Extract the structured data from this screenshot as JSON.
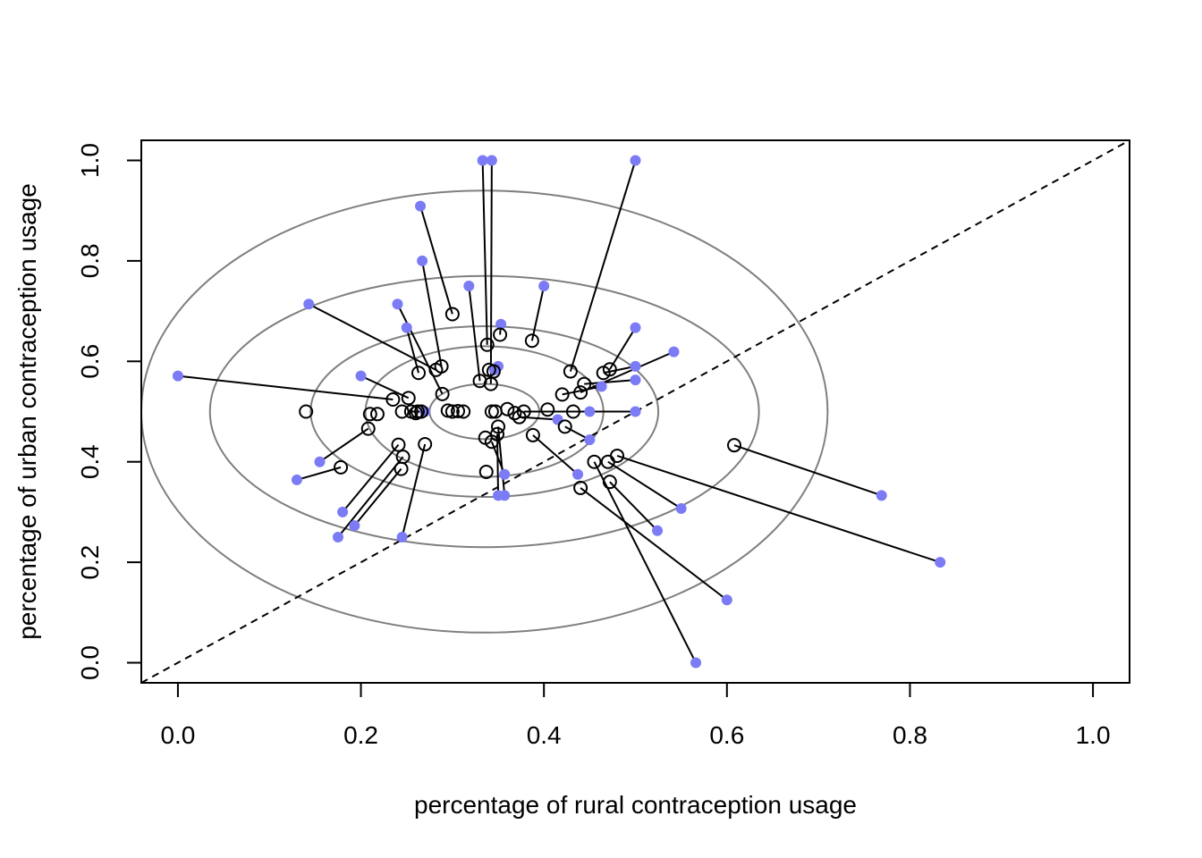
{
  "chart_data": {
    "type": "scatter",
    "title": "",
    "xlabel": "percentage of rural contraception usage",
    "ylabel": "percentage of  urban contraception usage",
    "xlim": [
      -0.04,
      1.04
    ],
    "ylim": [
      -0.04,
      1.04
    ],
    "xticks": [
      "0.0",
      "0.2",
      "0.4",
      "0.6",
      "0.8",
      "1.0"
    ],
    "yticks": [
      "0.0",
      "0.2",
      "0.4",
      "0.6",
      "0.8",
      "1.0"
    ],
    "grid": false,
    "legend": "none",
    "colors": {
      "observed": "#7b7bf5",
      "shrunk": "#000000",
      "contour": "#7f7f7f"
    },
    "reference_line": {
      "kind": "identity y = x",
      "style": "dashed"
    },
    "contours": {
      "center": [
        0.335,
        0.5
      ],
      "semi_axes": [
        [
          0.06,
          0.055
        ],
        [
          0.13,
          0.13
        ],
        [
          0.19,
          0.17
        ],
        [
          0.3,
          0.27
        ],
        [
          0.375,
          0.44
        ]
      ]
    },
    "series": [
      {
        "marker": "filled-circle",
        "values": [
          [
            0.0,
            0.571
          ],
          [
            0.143,
            0.714
          ],
          [
            0.25,
            0.667
          ],
          [
            0.24,
            0.714
          ],
          [
            0.265,
            0.909
          ],
          [
            0.267,
            0.8
          ],
          [
            0.333,
            1.0
          ],
          [
            0.343,
            1.0
          ],
          [
            0.5,
            1.0
          ],
          [
            0.4,
            0.75
          ],
          [
            0.318,
            0.75
          ],
          [
            0.353,
            0.674
          ],
          [
            0.5,
            0.667
          ],
          [
            0.5,
            0.59
          ],
          [
            0.5,
            0.563
          ],
          [
            0.542,
            0.619
          ],
          [
            0.463,
            0.55
          ],
          [
            0.5,
            0.5
          ],
          [
            0.45,
            0.5
          ],
          [
            0.27,
            0.5
          ],
          [
            0.35,
            0.59
          ],
          [
            0.346,
            0.583
          ],
          [
            0.2,
            0.571
          ],
          [
            0.155,
            0.4
          ],
          [
            0.13,
            0.364
          ],
          [
            0.18,
            0.3
          ],
          [
            0.175,
            0.25
          ],
          [
            0.193,
            0.273
          ],
          [
            0.245,
            0.25
          ],
          [
            0.35,
            0.333
          ],
          [
            0.357,
            0.333
          ],
          [
            0.357,
            0.375
          ],
          [
            0.437,
            0.375
          ],
          [
            0.45,
            0.444
          ],
          [
            0.415,
            0.484
          ],
          [
            0.524,
            0.263
          ],
          [
            0.55,
            0.307
          ],
          [
            0.6,
            0.125
          ],
          [
            0.566,
            0.0
          ],
          [
            0.769,
            0.333
          ],
          [
            0.833,
            0.2
          ]
        ]
      },
      {
        "marker": "open-circle",
        "values": [
          [
            0.235,
            0.524
          ],
          [
            0.282,
            0.583
          ],
          [
            0.263,
            0.577
          ],
          [
            0.252,
            0.527
          ],
          [
            0.288,
            0.59
          ],
          [
            0.3,
            0.694
          ],
          [
            0.289,
            0.535
          ],
          [
            0.33,
            0.561
          ],
          [
            0.338,
            0.633
          ],
          [
            0.34,
            0.583
          ],
          [
            0.429,
            0.58
          ],
          [
            0.387,
            0.641
          ],
          [
            0.352,
            0.653
          ],
          [
            0.342,
            0.555
          ],
          [
            0.472,
            0.584
          ],
          [
            0.465,
            0.577
          ],
          [
            0.444,
            0.555
          ],
          [
            0.42,
            0.534
          ],
          [
            0.44,
            0.538
          ],
          [
            0.432,
            0.5
          ],
          [
            0.404,
            0.504
          ],
          [
            0.343,
            0.5
          ],
          [
            0.345,
            0.58
          ],
          [
            0.255,
            0.5
          ],
          [
            0.21,
            0.495
          ],
          [
            0.208,
            0.466
          ],
          [
            0.178,
            0.389
          ],
          [
            0.241,
            0.434
          ],
          [
            0.246,
            0.41
          ],
          [
            0.27,
            0.435
          ],
          [
            0.244,
            0.386
          ],
          [
            0.14,
            0.5
          ],
          [
            0.218,
            0.495
          ],
          [
            0.245,
            0.5
          ],
          [
            0.26,
            0.497
          ],
          [
            0.262,
            0.5
          ],
          [
            0.266,
            0.5
          ],
          [
            0.295,
            0.502
          ],
          [
            0.3,
            0.5
          ],
          [
            0.306,
            0.501
          ],
          [
            0.312,
            0.5
          ],
          [
            0.347,
            0.5
          ],
          [
            0.36,
            0.505
          ],
          [
            0.368,
            0.497
          ],
          [
            0.373,
            0.489
          ],
          [
            0.378,
            0.5
          ],
          [
            0.35,
            0.47
          ],
          [
            0.349,
            0.455
          ],
          [
            0.336,
            0.448
          ],
          [
            0.343,
            0.44
          ],
          [
            0.337,
            0.38
          ],
          [
            0.388,
            0.453
          ],
          [
            0.423,
            0.47
          ],
          [
            0.455,
            0.4
          ],
          [
            0.47,
            0.4
          ],
          [
            0.48,
            0.412
          ],
          [
            0.472,
            0.36
          ],
          [
            0.44,
            0.348
          ],
          [
            0.608,
            0.433
          ]
        ]
      }
    ],
    "links": [
      [
        [
          0.0,
          0.571
        ],
        [
          0.235,
          0.524
        ]
      ],
      [
        [
          0.143,
          0.714
        ],
        [
          0.282,
          0.583
        ]
      ],
      [
        [
          0.25,
          0.667
        ],
        [
          0.263,
          0.577
        ]
      ],
      [
        [
          0.24,
          0.714
        ],
        [
          0.289,
          0.535
        ]
      ],
      [
        [
          0.265,
          0.909
        ],
        [
          0.3,
          0.694
        ]
      ],
      [
        [
          0.267,
          0.8
        ],
        [
          0.288,
          0.59
        ]
      ],
      [
        [
          0.333,
          1.0
        ],
        [
          0.338,
          0.633
        ]
      ],
      [
        [
          0.343,
          1.0
        ],
        [
          0.342,
          0.555
        ]
      ],
      [
        [
          0.5,
          1.0
        ],
        [
          0.429,
          0.58
        ]
      ],
      [
        [
          0.4,
          0.75
        ],
        [
          0.387,
          0.641
        ]
      ],
      [
        [
          0.318,
          0.75
        ],
        [
          0.33,
          0.561
        ]
      ],
      [
        [
          0.353,
          0.674
        ],
        [
          0.352,
          0.653
        ]
      ],
      [
        [
          0.5,
          0.667
        ],
        [
          0.472,
          0.584
        ]
      ],
      [
        [
          0.5,
          0.59
        ],
        [
          0.465,
          0.577
        ]
      ],
      [
        [
          0.5,
          0.563
        ],
        [
          0.444,
          0.555
        ]
      ],
      [
        [
          0.542,
          0.619
        ],
        [
          0.44,
          0.538
        ]
      ],
      [
        [
          0.463,
          0.55
        ],
        [
          0.42,
          0.534
        ]
      ],
      [
        [
          0.5,
          0.5
        ],
        [
          0.378,
          0.5
        ]
      ],
      [
        [
          0.45,
          0.5
        ],
        [
          0.432,
          0.5
        ]
      ],
      [
        [
          0.27,
          0.5
        ],
        [
          0.255,
          0.5
        ]
      ],
      [
        [
          0.35,
          0.59
        ],
        [
          0.345,
          0.58
        ]
      ],
      [
        [
          0.346,
          0.583
        ],
        [
          0.34,
          0.583
        ]
      ],
      [
        [
          0.2,
          0.571
        ],
        [
          0.252,
          0.527
        ]
      ],
      [
        [
          0.155,
          0.4
        ],
        [
          0.208,
          0.466
        ]
      ],
      [
        [
          0.13,
          0.364
        ],
        [
          0.178,
          0.389
        ]
      ],
      [
        [
          0.18,
          0.3
        ],
        [
          0.241,
          0.434
        ]
      ],
      [
        [
          0.175,
          0.25
        ],
        [
          0.246,
          0.41
        ]
      ],
      [
        [
          0.193,
          0.273
        ],
        [
          0.244,
          0.386
        ]
      ],
      [
        [
          0.245,
          0.25
        ],
        [
          0.27,
          0.435
        ]
      ],
      [
        [
          0.35,
          0.333
        ],
        [
          0.349,
          0.455
        ]
      ],
      [
        [
          0.357,
          0.333
        ],
        [
          0.35,
          0.47
        ]
      ],
      [
        [
          0.357,
          0.375
        ],
        [
          0.343,
          0.44
        ]
      ],
      [
        [
          0.437,
          0.375
        ],
        [
          0.388,
          0.453
        ]
      ],
      [
        [
          0.45,
          0.444
        ],
        [
          0.423,
          0.47
        ]
      ],
      [
        [
          0.415,
          0.484
        ],
        [
          0.373,
          0.489
        ]
      ],
      [
        [
          0.524,
          0.263
        ],
        [
          0.472,
          0.36
        ]
      ],
      [
        [
          0.55,
          0.307
        ],
        [
          0.47,
          0.4
        ]
      ],
      [
        [
          0.6,
          0.125
        ],
        [
          0.44,
          0.348
        ]
      ],
      [
        [
          0.566,
          0.0
        ],
        [
          0.455,
          0.4
        ]
      ],
      [
        [
          0.769,
          0.333
        ],
        [
          0.608,
          0.433
        ]
      ],
      [
        [
          0.833,
          0.2
        ],
        [
          0.48,
          0.412
        ]
      ]
    ]
  }
}
